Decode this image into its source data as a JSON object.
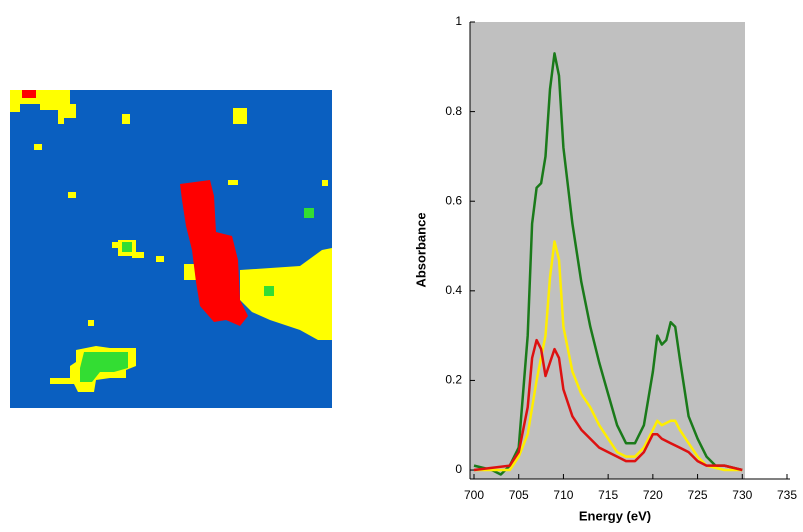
{
  "chart_data": {
    "type": "line",
    "xlabel": "Energy (eV)",
    "ylabel": "Absorbance",
    "xlim": [
      700,
      735
    ],
    "xticks": [
      700,
      705,
      710,
      715,
      720,
      725,
      730,
      735
    ],
    "ylim": [
      -0.02,
      1
    ],
    "yticks": [
      0,
      0.2,
      0.4,
      0.6,
      0.8,
      1
    ],
    "series": [
      {
        "color": "#1a7a1a",
        "x": [
          700,
          702,
          703,
          704,
          705,
          706,
          706.5,
          707,
          707.5,
          708,
          708.5,
          709,
          709.5,
          710,
          711,
          712,
          713,
          714,
          715,
          716,
          717,
          718,
          719,
          720,
          720.5,
          721,
          721.5,
          722,
          722.5,
          723,
          724,
          725,
          726,
          727,
          728,
          730
        ],
        "values": [
          0.01,
          0.0,
          -0.01,
          0.01,
          0.05,
          0.3,
          0.55,
          0.63,
          0.64,
          0.7,
          0.85,
          0.93,
          0.88,
          0.72,
          0.55,
          0.42,
          0.32,
          0.24,
          0.17,
          0.1,
          0.06,
          0.06,
          0.1,
          0.22,
          0.3,
          0.28,
          0.29,
          0.33,
          0.32,
          0.25,
          0.12,
          0.07,
          0.03,
          0.01,
          0.01,
          0.0
        ]
      },
      {
        "color": "#ffee00",
        "x": [
          700,
          704,
          705,
          706,
          707,
          708,
          708.5,
          709,
          709.5,
          710,
          711,
          712,
          713,
          714,
          715,
          716,
          717,
          718,
          719,
          720,
          720.5,
          721,
          722,
          722.5,
          723,
          724,
          725,
          726,
          728,
          730
        ],
        "values": [
          0.0,
          0.0,
          0.03,
          0.08,
          0.2,
          0.3,
          0.43,
          0.51,
          0.47,
          0.32,
          0.22,
          0.17,
          0.14,
          0.1,
          0.07,
          0.04,
          0.03,
          0.03,
          0.05,
          0.09,
          0.11,
          0.1,
          0.11,
          0.11,
          0.09,
          0.06,
          0.03,
          0.01,
          0.0,
          0.0
        ]
      },
      {
        "color": "#dd1111",
        "x": [
          700,
          704,
          705,
          706,
          706.5,
          707,
          707.5,
          708,
          708.5,
          709,
          709.5,
          710,
          711,
          712,
          713,
          714,
          715,
          716,
          717,
          718,
          719,
          720,
          720.5,
          721,
          722,
          723,
          724,
          725,
          726,
          728,
          730
        ],
        "values": [
          0.0,
          0.01,
          0.04,
          0.14,
          0.25,
          0.29,
          0.27,
          0.21,
          0.24,
          0.27,
          0.25,
          0.18,
          0.12,
          0.09,
          0.07,
          0.05,
          0.04,
          0.03,
          0.02,
          0.02,
          0.04,
          0.08,
          0.08,
          0.07,
          0.06,
          0.05,
          0.04,
          0.02,
          0.01,
          0.01,
          0.0
        ]
      }
    ]
  }
}
